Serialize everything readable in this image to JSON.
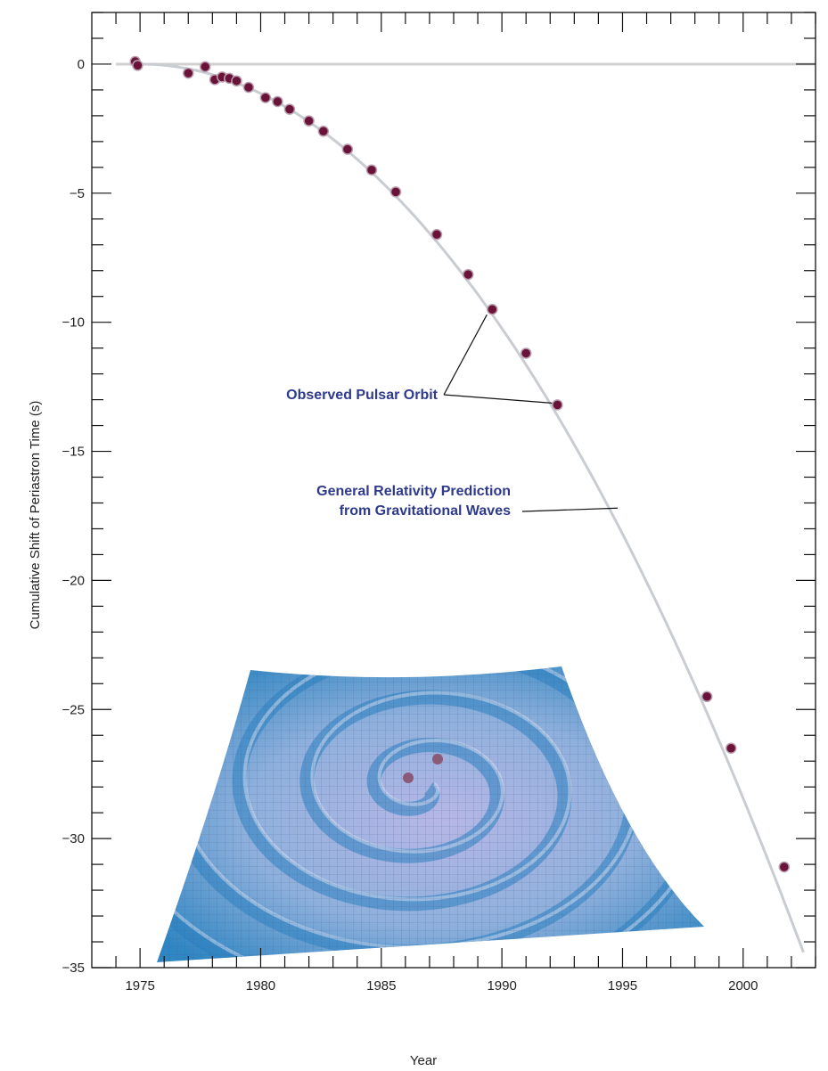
{
  "chart_data": {
    "type": "scatter",
    "xlabel": "Year",
    "ylabel": "Cumulative Shift of Periastron Time (s)",
    "xlim": [
      1973,
      2003
    ],
    "ylim": [
      -35,
      2
    ],
    "xticks": [
      1975,
      1980,
      1985,
      1990,
      1995,
      2000
    ],
    "yticks": [
      0,
      -5,
      -10,
      -15,
      -20,
      -25,
      -30,
      -35
    ],
    "grid": false,
    "series": [
      {
        "name": "Observed Pulsar Orbit",
        "style": "points",
        "color": "#6b1238",
        "points": [
          [
            1974.8,
            0.1
          ],
          [
            1974.9,
            -0.05
          ],
          [
            1977.0,
            -0.35
          ],
          [
            1977.7,
            -0.1
          ],
          [
            1978.1,
            -0.6
          ],
          [
            1978.4,
            -0.5
          ],
          [
            1978.7,
            -0.55
          ],
          [
            1979.0,
            -0.65
          ],
          [
            1979.5,
            -0.9
          ],
          [
            1980.2,
            -1.3
          ],
          [
            1980.7,
            -1.45
          ],
          [
            1981.2,
            -1.75
          ],
          [
            1982.0,
            -2.2
          ],
          [
            1982.6,
            -2.6
          ],
          [
            1983.6,
            -3.3
          ],
          [
            1984.6,
            -4.1
          ],
          [
            1985.6,
            -4.95
          ],
          [
            1987.3,
            -6.6
          ],
          [
            1988.6,
            -8.15
          ],
          [
            1989.6,
            -9.5
          ],
          [
            1991.0,
            -11.2
          ],
          [
            1992.3,
            -13.2
          ],
          [
            1998.5,
            -24.5
          ],
          [
            1999.5,
            -26.5
          ],
          [
            2001.7,
            -31.1
          ]
        ]
      },
      {
        "name": "General Relativity Prediction from Gravitational Waves",
        "style": "curve",
        "color": "#c9cdd2",
        "t0": 1975.0,
        "k": -0.0455,
        "x_range": [
          1975.0,
          2002.5
        ]
      }
    ],
    "reference_line": {
      "y": 0,
      "color": "#d0d0d0"
    },
    "annotations": [
      {
        "text": "Observed Pulsar Orbit",
        "targets": [
          [
            1989.6,
            -9.5
          ],
          [
            1992.3,
            -13.2
          ]
        ]
      },
      {
        "text_lines": [
          "General Relativity Prediction",
          "from Gravitational Waves"
        ],
        "target": [
          1994.8,
          -17.2
        ]
      }
    ],
    "inset_illustration": "gravitational-wave spacetime ripple surface with two orbiting bodies"
  },
  "colors": {
    "marker": "#6b1238",
    "annotation_text": "#2e3a8c",
    "curve": "#c9cdd2",
    "surface_light": "#b7b7e6",
    "surface_dark": "#2f86c2"
  }
}
